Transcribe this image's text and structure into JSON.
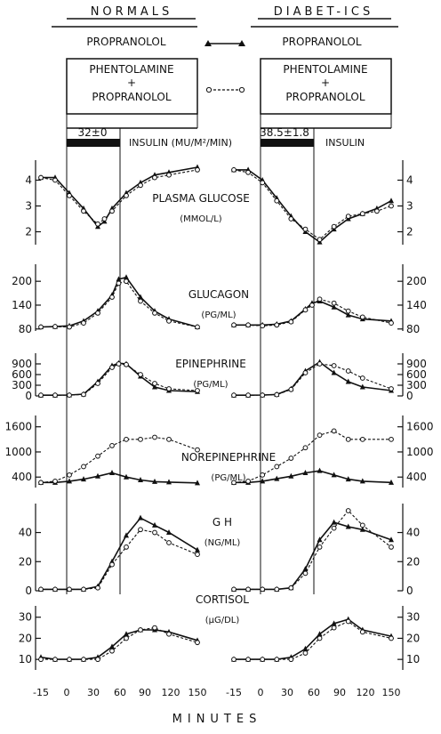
{
  "header": {
    "normals": "NORMALS",
    "diabetics": "DIABET-ICS",
    "propranolol": "PROPRANOLOL",
    "phentolamine": "PHENTOLAMINE",
    "plus": "+",
    "insulin_rate_normals": "32±0",
    "insulin_rate_diabetics": "38.5±1.8",
    "insulin_label_normals": "INSULIN (MU/M²/MIN)",
    "insulin_label_diabetics": "INSULIN"
  },
  "x_axis": {
    "label": "MINUTES",
    "ticks": [
      -15,
      0,
      15,
      30,
      45,
      60,
      75,
      90,
      105,
      120,
      135,
      150
    ]
  },
  "tick_labels": [
    "-15",
    "0",
    "30",
    "60",
    "90",
    "120",
    "150"
  ],
  "colors": {
    "ink": "#111111"
  },
  "chart_data": [
    {
      "type": "line",
      "group": "normals",
      "title": "PLASMA GLUCOSE",
      "unit": "(MMOL/L)",
      "ylim": [
        1.5,
        4.5
      ],
      "yticks": [
        2,
        3,
        4
      ],
      "x": [
        -15,
        0,
        15,
        30,
        45,
        52,
        60,
        75,
        90,
        105,
        120,
        150
      ],
      "series": [
        {
          "name": "PROPRANOLOL",
          "values": [
            4.1,
            4.1,
            3.5,
            2.9,
            2.2,
            2.4,
            2.9,
            3.5,
            3.9,
            4.2,
            4.3,
            4.5
          ]
        },
        {
          "name": "PHENTOLAMINE + PROPRANOLOL",
          "values": [
            4.1,
            4.0,
            3.4,
            2.8,
            2.3,
            2.5,
            2.8,
            3.4,
            3.8,
            4.1,
            4.2,
            4.4
          ]
        }
      ]
    },
    {
      "type": "line",
      "group": "diabetics",
      "title": "PLASMA GLUCOSE",
      "unit": "(MMOL/L)",
      "ylim": [
        1.5,
        4.5
      ],
      "yticks": [
        2,
        3,
        4
      ],
      "x": [
        -15,
        0,
        15,
        30,
        45,
        60,
        75,
        90,
        105,
        120,
        135,
        150
      ],
      "series": [
        {
          "name": "PROPRANOLOL",
          "values": [
            4.4,
            4.4,
            4.0,
            3.3,
            2.6,
            2.0,
            1.6,
            2.1,
            2.5,
            2.7,
            2.9,
            3.2
          ]
        },
        {
          "name": "PHENTOLAMINE + PROPRANOLOL",
          "values": [
            4.4,
            4.3,
            3.9,
            3.2,
            2.5,
            2.1,
            1.7,
            2.2,
            2.6,
            2.7,
            2.8,
            3.0
          ]
        }
      ]
    },
    {
      "type": "line",
      "group": "normals",
      "title": "GLUCAGON",
      "unit": "(PG/ML)",
      "ylim": [
        75,
        225
      ],
      "yticks": [
        80,
        140,
        200
      ],
      "x": [
        -15,
        0,
        15,
        30,
        45,
        60,
        67,
        75,
        90,
        105,
        120,
        150
      ],
      "series": [
        {
          "name": "PROPRANOLOL",
          "values": [
            85,
            86,
            88,
            100,
            125,
            165,
            205,
            210,
            160,
            125,
            105,
            85
          ]
        },
        {
          "name": "PHENTOLAMINE + PROPRANOLOL",
          "values": [
            85,
            86,
            85,
            95,
            120,
            160,
            195,
            200,
            150,
            120,
            100,
            85
          ]
        }
      ]
    },
    {
      "type": "line",
      "group": "diabetics",
      "title": "GLUCAGON",
      "unit": "(PG/ML)",
      "ylim": [
        75,
        225
      ],
      "yticks": [
        80,
        140,
        200
      ],
      "x": [
        -15,
        0,
        15,
        30,
        45,
        60,
        67,
        75,
        90,
        105,
        120,
        150
      ],
      "series": [
        {
          "name": "PROPRANOLOL",
          "values": [
            90,
            90,
            90,
            92,
            100,
            130,
            145,
            150,
            135,
            115,
            105,
            100
          ]
        },
        {
          "name": "PHENTOLAMINE + PROPRANOLOL",
          "values": [
            90,
            90,
            88,
            90,
            98,
            128,
            140,
            155,
            145,
            125,
            110,
            95
          ]
        }
      ]
    },
    {
      "type": "line",
      "group": "normals",
      "title": "EPINEPHRINE",
      "unit": "(PG/ML)",
      "ylim": [
        0,
        1000
      ],
      "yticks": [
        0,
        300,
        600,
        900
      ],
      "x": [
        -15,
        0,
        15,
        30,
        45,
        60,
        67,
        75,
        90,
        105,
        120,
        150
      ],
      "series": [
        {
          "name": "PROPRANOLOL",
          "values": [
            20,
            20,
            25,
            50,
            400,
            850,
            920,
            900,
            550,
            250,
            150,
            120
          ]
        },
        {
          "name": "PHENTOLAMINE + PROPRANOLOL",
          "values": [
            20,
            20,
            22,
            40,
            350,
            800,
            900,
            880,
            600,
            350,
            200,
            150
          ]
        }
      ]
    },
    {
      "type": "line",
      "group": "diabetics",
      "title": "EPINEPHRINE",
      "unit": "(PG/ML)",
      "ylim": [
        0,
        1000
      ],
      "yticks": [
        0,
        300,
        600,
        900
      ],
      "x": [
        -15,
        0,
        15,
        30,
        45,
        60,
        75,
        90,
        105,
        120,
        150
      ],
      "series": [
        {
          "name": "PROPRANOLOL",
          "values": [
            20,
            20,
            25,
            40,
            200,
            700,
            950,
            650,
            400,
            250,
            150
          ]
        },
        {
          "name": "PHENTOLAMINE + PROPRANOLOL",
          "values": [
            20,
            20,
            22,
            35,
            180,
            650,
            900,
            850,
            700,
            500,
            200
          ]
        }
      ]
    },
    {
      "type": "line",
      "group": "normals",
      "title": "NOREPINEPHRINE",
      "unit": "(PG/ML)",
      "ylim": [
        150,
        1700
      ],
      "yticks": [
        400,
        1000,
        1600
      ],
      "x": [
        -15,
        0,
        15,
        30,
        45,
        60,
        75,
        90,
        105,
        120,
        150
      ],
      "series": [
        {
          "name": "PROPRANOLOL",
          "values": [
            270,
            270,
            300,
            350,
            420,
            500,
            400,
            330,
            290,
            280,
            260
          ]
        },
        {
          "name": "PHENTOLAMINE + PROPRANOLOL",
          "values": [
            270,
            300,
            450,
            650,
            900,
            1150,
            1300,
            1300,
            1350,
            1300,
            1050
          ]
        }
      ]
    },
    {
      "type": "line",
      "group": "diabetics",
      "title": "NOREPINEPHRINE",
      "unit": "(PG/ML)",
      "ylim": [
        150,
        1700
      ],
      "yticks": [
        400,
        1000,
        1600
      ],
      "x": [
        -15,
        0,
        15,
        30,
        45,
        60,
        75,
        90,
        105,
        120,
        150
      ],
      "series": [
        {
          "name": "PROPRANOLOL",
          "values": [
            270,
            270,
            300,
            360,
            420,
            500,
            550,
            450,
            350,
            300,
            270
          ]
        },
        {
          "name": "PHENTOLAMINE + PROPRANOLOL",
          "values": [
            270,
            300,
            450,
            650,
            850,
            1100,
            1400,
            1500,
            1300,
            1300,
            1300
          ]
        }
      ]
    },
    {
      "type": "line",
      "group": "normals",
      "title": "G H",
      "unit": "(NG/ML)",
      "ylim": [
        0,
        55
      ],
      "yticks": [
        0,
        20,
        40
      ],
      "x": [
        -15,
        0,
        15,
        30,
        45,
        60,
        75,
        90,
        105,
        120,
        150
      ],
      "series": [
        {
          "name": "PROPRANOLOL",
          "values": [
            1,
            1,
            1,
            1,
            3,
            20,
            38,
            50,
            45,
            40,
            28
          ]
        },
        {
          "name": "PHENTOLAMINE + PROPRANOLOL",
          "values": [
            1,
            1,
            1,
            1,
            2,
            18,
            30,
            42,
            40,
            33,
            25
          ]
        }
      ]
    },
    {
      "type": "line",
      "group": "diabetics",
      "title": "G H",
      "unit": "(NG/ML)",
      "ylim": [
        0,
        55
      ],
      "yticks": [
        0,
        20,
        40
      ],
      "x": [
        -15,
        0,
        15,
        30,
        45,
        60,
        75,
        90,
        105,
        120,
        150
      ],
      "series": [
        {
          "name": "PROPRANOLOL",
          "values": [
            1,
            1,
            1,
            1,
            2,
            15,
            35,
            47,
            44,
            42,
            35
          ]
        },
        {
          "name": "PHENTOLAMINE + PROPRANOLOL",
          "values": [
            1,
            1,
            1,
            1,
            2,
            12,
            30,
            43,
            55,
            45,
            30
          ]
        }
      ]
    },
    {
      "type": "line",
      "group": "normals",
      "title": "CORTISOL",
      "unit": "(μG/DL)",
      "ylim": [
        5,
        32
      ],
      "yticks": [
        10,
        20,
        30
      ],
      "x": [
        -15,
        0,
        15,
        30,
        45,
        60,
        75,
        90,
        105,
        120,
        150
      ],
      "series": [
        {
          "name": "PROPRANOLOL",
          "values": [
            11,
            10,
            10,
            10,
            11,
            16,
            22,
            24,
            24,
            23,
            19
          ]
        },
        {
          "name": "PHENTOLAMINE + PROPRANOLOL",
          "values": [
            10,
            10,
            10,
            10,
            10,
            14,
            20,
            24,
            25,
            22,
            18
          ]
        }
      ]
    },
    {
      "type": "line",
      "group": "diabetics",
      "title": "CORTISOL",
      "unit": "(μG/DL)",
      "ylim": [
        5,
        32
      ],
      "yticks": [
        10,
        20,
        30
      ],
      "x": [
        -15,
        0,
        15,
        30,
        45,
        60,
        75,
        90,
        105,
        120,
        150
      ],
      "series": [
        {
          "name": "PROPRANOLOL",
          "values": [
            10,
            10,
            10,
            10,
            11,
            15,
            22,
            27,
            29,
            24,
            21
          ]
        },
        {
          "name": "PHENTOLAMINE + PROPRANOLOL",
          "values": [
            10,
            10,
            10,
            10,
            10,
            13,
            20,
            25,
            28,
            23,
            20
          ]
        }
      ]
    }
  ]
}
